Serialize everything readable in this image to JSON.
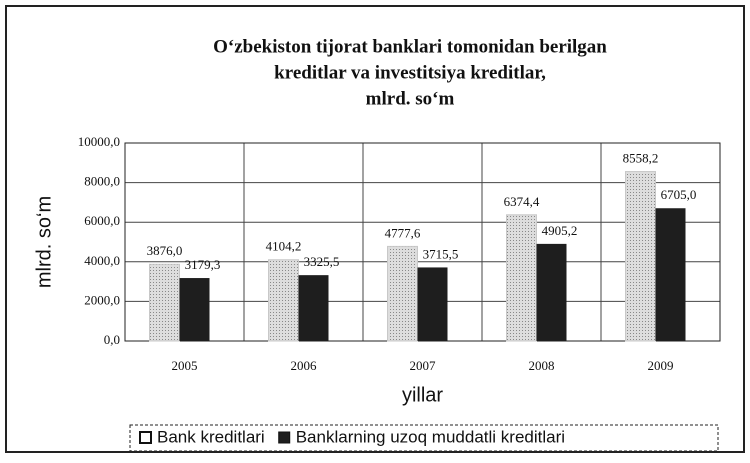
{
  "chart_data": {
    "type": "bar",
    "title": [
      "O‘zbekiston tijorat banklari tomonidan berilgan",
      "kreditlar va investitsiya kreditlar,",
      "mlrd. so‘m"
    ],
    "y_label": "mlrd. so‘m",
    "x_label": "yillar",
    "categories": [
      "2005",
      "2006",
      "2007",
      "2008",
      "2009"
    ],
    "series": [
      {
        "name": "Bank kreditlari",
        "color": "#c8c8c8",
        "values": [
          3876.0,
          4104.2,
          4777.6,
          6374.4,
          8558.2
        ],
        "value_labels": [
          "3876,0",
          "4104,2",
          "4777,6",
          "6374,4",
          "8558,2"
        ]
      },
      {
        "name": "Banklarning uzoq muddatli kreditlari",
        "color": "#1e1e1e",
        "values": [
          3179.3,
          3325.5,
          3715.5,
          4905.2,
          6705.0
        ],
        "value_labels": [
          "3179,3",
          "3325,5",
          "3715,5",
          "4905,2",
          "6705,0"
        ]
      }
    ],
    "ylim": [
      0,
      10000
    ],
    "yticks": [
      {
        "value": 0,
        "label": "0,0"
      },
      {
        "value": 2000,
        "label": "2000,0"
      },
      {
        "value": 4000,
        "label": "4000,0"
      },
      {
        "value": 6000,
        "label": "6000,0"
      },
      {
        "value": 8000,
        "label": "8000,0"
      },
      {
        "value": 10000,
        "label": "10000,0"
      }
    ],
    "grid": true,
    "legend": "bottom"
  }
}
